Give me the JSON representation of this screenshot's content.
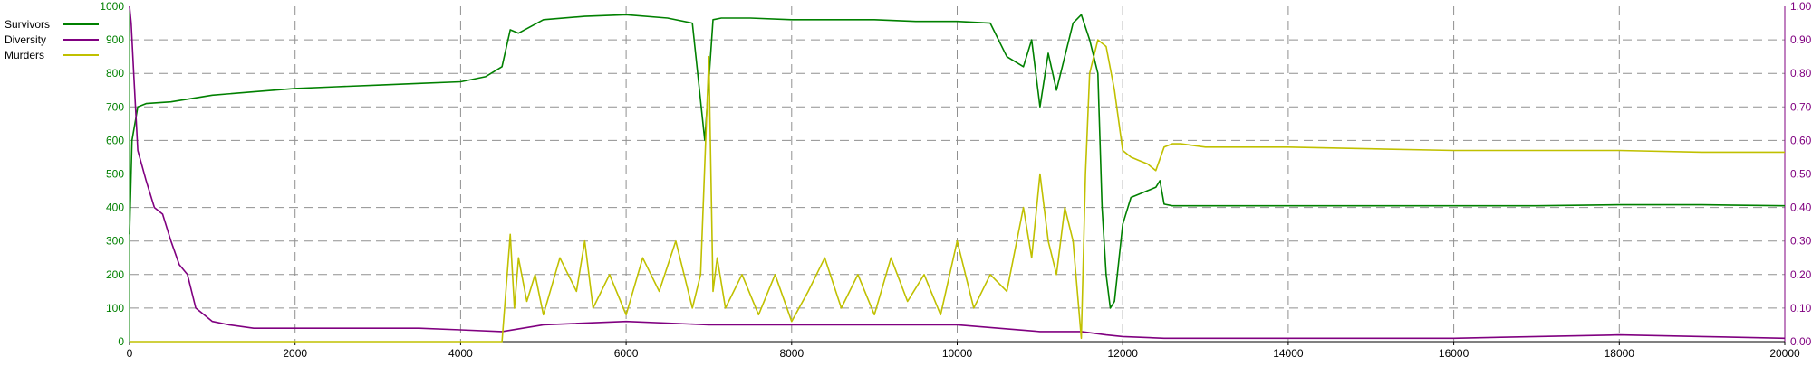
{
  "chart_data": {
    "type": "line",
    "x_ticks": [
      0,
      2000,
      4000,
      6000,
      8000,
      10000,
      12000,
      14000,
      16000,
      18000,
      20000
    ],
    "xlim": [
      0,
      20000
    ],
    "y_left": {
      "ticks": [
        0,
        100,
        200,
        300,
        400,
        500,
        600,
        700,
        800,
        900,
        1000
      ],
      "lim": [
        0,
        1000
      ],
      "color": "#008000"
    },
    "y_right": {
      "ticks": [
        "0.00",
        "0.10",
        "0.20",
        "0.30",
        "0.40",
        "0.50",
        "0.60",
        "0.70",
        "0.80",
        "0.90",
        "1.00"
      ],
      "lim": [
        0,
        1
      ],
      "color": "#800080"
    },
    "grid": true,
    "legend_position": "top-left",
    "series": [
      {
        "name": "Survivors",
        "axis": "left",
        "color": "#008000",
        "x": [
          0,
          30,
          100,
          200,
          500,
          1000,
          1500,
          2000,
          2500,
          3000,
          3500,
          4000,
          4300,
          4500,
          4600,
          4700,
          5000,
          5500,
          6000,
          6500,
          6800,
          6950,
          7050,
          7150,
          7500,
          8000,
          8500,
          9000,
          9500,
          10000,
          10400,
          10600,
          10800,
          10900,
          11000,
          11100,
          11200,
          11400,
          11500,
          11600,
          11700,
          11750,
          11800,
          11850,
          11900,
          12000,
          12100,
          12200,
          12300,
          12400,
          12450,
          12500,
          12600,
          12700,
          13000,
          14000,
          15000,
          16000,
          17000,
          18000,
          19000,
          20000
        ],
        "y": [
          320,
          600,
          700,
          710,
          715,
          735,
          745,
          755,
          760,
          765,
          770,
          775,
          790,
          820,
          930,
          920,
          960,
          970,
          975,
          965,
          950,
          600,
          960,
          965,
          965,
          960,
          960,
          960,
          955,
          955,
          950,
          850,
          820,
          900,
          700,
          860,
          750,
          950,
          975,
          900,
          800,
          400,
          200,
          100,
          120,
          350,
          430,
          440,
          450,
          460,
          480,
          410,
          405,
          405,
          405,
          405,
          405,
          405,
          405,
          408,
          408,
          405
        ]
      },
      {
        "name": "Diversity",
        "axis": "right",
        "color": "#800080",
        "x": [
          0,
          20,
          50,
          100,
          200,
          300,
          400,
          500,
          600,
          700,
          800,
          900,
          1000,
          1200,
          1500,
          2000,
          2500,
          3000,
          3500,
          4000,
          4500,
          5000,
          6000,
          7000,
          8000,
          9000,
          10000,
          10500,
          11000,
          11500,
          11800,
          12000,
          12500,
          13000,
          14000,
          15000,
          16000,
          17000,
          18000,
          19000,
          20000
        ],
        "y": [
          1.0,
          0.95,
          0.8,
          0.57,
          0.48,
          0.4,
          0.38,
          0.3,
          0.23,
          0.2,
          0.1,
          0.08,
          0.06,
          0.05,
          0.04,
          0.04,
          0.04,
          0.04,
          0.04,
          0.035,
          0.03,
          0.05,
          0.06,
          0.05,
          0.05,
          0.05,
          0.05,
          0.04,
          0.03,
          0.03,
          0.02,
          0.015,
          0.01,
          0.01,
          0.01,
          0.01,
          0.01,
          0.015,
          0.02,
          0.015,
          0.01
        ]
      },
      {
        "name": "Murders",
        "axis": "left",
        "color": "#c0c000",
        "x": [
          0,
          4500,
          4600,
          4650,
          4700,
          4800,
          4900,
          5000,
          5200,
          5400,
          5500,
          5600,
          5800,
          6000,
          6200,
          6400,
          6600,
          6800,
          6900,
          7000,
          7050,
          7100,
          7200,
          7400,
          7600,
          7800,
          8000,
          8200,
          8400,
          8600,
          8800,
          9000,
          9200,
          9400,
          9600,
          9800,
          10000,
          10200,
          10400,
          10600,
          10800,
          10900,
          11000,
          11100,
          11200,
          11300,
          11400,
          11500,
          11550,
          11600,
          11700,
          11800,
          11900,
          12000,
          12100,
          12200,
          12300,
          12400,
          12500,
          12600,
          12700,
          13000,
          14000,
          15000,
          16000,
          17000,
          18000,
          19000,
          20000
        ],
        "y": [
          0,
          0,
          320,
          100,
          250,
          120,
          200,
          80,
          250,
          150,
          300,
          100,
          200,
          80,
          250,
          150,
          300,
          100,
          200,
          850,
          150,
          250,
          100,
          200,
          80,
          200,
          60,
          150,
          250,
          100,
          200,
          80,
          250,
          120,
          200,
          80,
          300,
          100,
          200,
          150,
          400,
          250,
          500,
          300,
          200,
          400,
          300,
          10,
          500,
          800,
          900,
          880,
          750,
          570,
          550,
          540,
          530,
          510,
          580,
          590,
          590,
          580,
          580,
          575,
          570,
          570,
          570,
          565,
          565
        ]
      }
    ]
  }
}
